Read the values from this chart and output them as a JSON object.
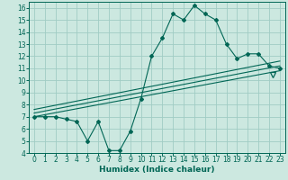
{
  "xlabel": "Humidex (Indice chaleur)",
  "bg_color": "#cce8e0",
  "grid_color": "#a0ccc4",
  "line_color": "#006655",
  "xlim": [
    -0.5,
    23.5
  ],
  "ylim": [
    4,
    16.5
  ],
  "xticks": [
    0,
    1,
    2,
    3,
    4,
    5,
    6,
    7,
    8,
    9,
    10,
    11,
    12,
    13,
    14,
    15,
    16,
    17,
    18,
    19,
    20,
    21,
    22,
    23
  ],
  "yticks": [
    4,
    5,
    6,
    7,
    8,
    9,
    10,
    11,
    12,
    13,
    14,
    15,
    16
  ],
  "main_x": [
    0,
    1,
    2,
    3,
    4,
    5,
    6,
    7,
    8,
    9,
    10,
    11,
    12,
    13,
    14,
    15,
    16,
    17,
    18,
    19,
    20,
    21,
    22,
    23
  ],
  "main_y": [
    7.0,
    7.0,
    7.0,
    6.8,
    6.6,
    5.0,
    6.6,
    4.2,
    4.2,
    5.8,
    8.5,
    12.0,
    13.5,
    15.5,
    15.0,
    16.2,
    15.5,
    15.0,
    13.0,
    11.8,
    12.2,
    12.2,
    11.2,
    11.0
  ],
  "reg_line1_x": [
    0,
    23
  ],
  "reg_line1_y": [
    7.0,
    10.8
  ],
  "reg_line2_x": [
    0,
    23
  ],
  "reg_line2_y": [
    7.3,
    11.2
  ],
  "reg_line3_x": [
    0,
    23
  ],
  "reg_line3_y": [
    7.6,
    11.6
  ],
  "triangle_x": 22.3,
  "triangle_y": 10.5,
  "font_size_label": 6.5,
  "font_size_tick": 5.5
}
